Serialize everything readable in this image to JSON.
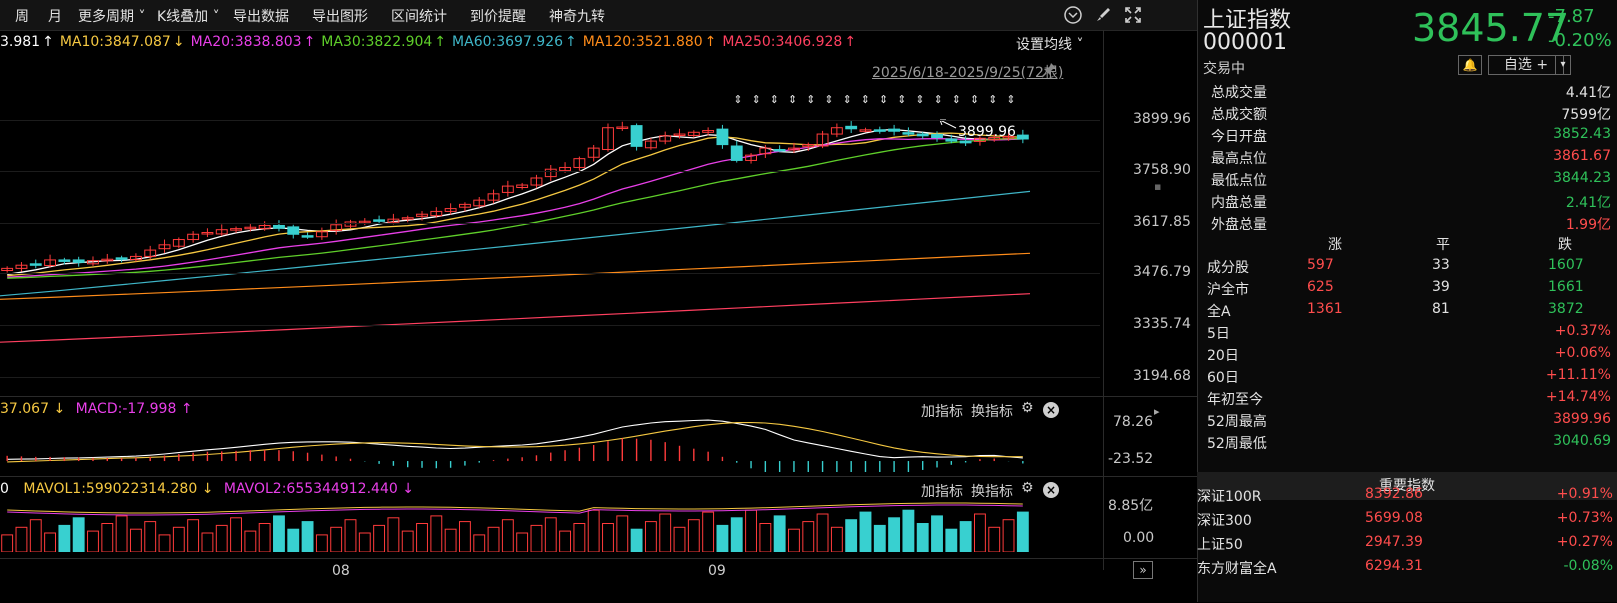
{
  "toolbar": {
    "items": [
      "周",
      "月",
      "更多周期",
      "K线叠加",
      "导出数据",
      "导出图形",
      "区间统计",
      "到价提醒",
      "神奇九转"
    ],
    "icons": [
      "chevron-circle-icon",
      "brush-icon",
      "fullscreen-icon"
    ]
  },
  "ma": [
    {
      "label": "3.981",
      "arrow": "↑",
      "color": "#ffffff"
    },
    {
      "label": "MA10:3847.087",
      "arrow": "↓",
      "color": "#f5c842"
    },
    {
      "label": "MA20:3838.803",
      "arrow": "↑",
      "color": "#e83fe8"
    },
    {
      "label": "MA30:3822.904",
      "arrow": "↑",
      "color": "#5fcf2a"
    },
    {
      "label": "MA60:3697.926",
      "arrow": "↑",
      "color": "#3fb6c8"
    },
    {
      "label": "MA120:3521.880",
      "arrow": "↑",
      "color": "#ff8c1a"
    },
    {
      "label": "MA250:3406.928",
      "arrow": "↑",
      "color": "#ff4060"
    }
  ],
  "settings_label": "设置均线",
  "range_label": "2025/6/18-2025/9/25(72根)",
  "high_marker": "3899.96",
  "y_axis": [
    "3899.96",
    "3758.90",
    "3617.85",
    "3476.79",
    "3335.74",
    "3194.68"
  ],
  "x_axis": [
    "08",
    "09"
  ],
  "macd": {
    "left": "37.067",
    "left_arrow": "↓",
    "macd": "MACD:-17.998",
    "macd_arrow": "↑",
    "ticks": [
      "78.26",
      "-23.52"
    ]
  },
  "vol": {
    "left": "0",
    "mavol1": "MAVOL1:599022314.280",
    "mavol1_arrow": "↓",
    "mavol2": "MAVOL2:655344912.440",
    "mavol2_arrow": "↓",
    "ticks": [
      "8.85亿",
      "0.00"
    ]
  },
  "panel_buttons": {
    "add": "加指标",
    "switch": "换指标"
  },
  "index": {
    "name": "上证指数",
    "code": "000001",
    "status": "交易中",
    "price": "3845.77",
    "change": "-7.87",
    "pct": "-0.20%",
    "watch_btn": "自选 +"
  },
  "stats": [
    {
      "k": "总成交量",
      "v": "4.41亿",
      "c": "w"
    },
    {
      "k": "总成交额",
      "v": "7599亿",
      "c": "w"
    },
    {
      "k": "今日开盘",
      "v": "3852.43",
      "c": "g"
    },
    {
      "k": "最高点位",
      "v": "3861.67",
      "c": "r"
    },
    {
      "k": "最低点位",
      "v": "3844.23",
      "c": "g"
    },
    {
      "k": "内盘总量",
      "v": "2.41亿",
      "c": "g"
    },
    {
      "k": "外盘总量",
      "v": "1.99亿",
      "c": "r"
    }
  ],
  "breadth_header": [
    "涨",
    "平",
    "跌"
  ],
  "breadth": [
    {
      "k": "成分股",
      "up": "597",
      "flat": "33",
      "down": "1607"
    },
    {
      "k": "沪全市",
      "up": "625",
      "flat": "39",
      "down": "1661"
    },
    {
      "k": "全A",
      "up": "1361",
      "flat": "81",
      "down": "3872"
    }
  ],
  "periods": [
    {
      "k": "5日",
      "v": "+0.37%",
      "c": "r"
    },
    {
      "k": "20日",
      "v": "+0.06%",
      "c": "r"
    },
    {
      "k": "60日",
      "v": "+11.11%",
      "c": "r"
    },
    {
      "k": "年初至今",
      "v": "+14.74%",
      "c": "r"
    },
    {
      "k": "52周最高",
      "v": "3899.96",
      "c": "r"
    },
    {
      "k": "52周最低",
      "v": "3040.69",
      "c": "g"
    }
  ],
  "important_title": "重要指数",
  "important": [
    {
      "name": "深证100R",
      "price": "8392.86",
      "pct": "+0.91%",
      "c": "r"
    },
    {
      "name": "深证300",
      "price": "5699.08",
      "pct": "+0.73%",
      "c": "r"
    },
    {
      "name": "上证50",
      "price": "2947.39",
      "pct": "+0.27%",
      "c": "r"
    },
    {
      "name": "东方财富全A",
      "price": "6294.31",
      "pct": "-0.08%",
      "c": "g"
    }
  ],
  "chart_data": {
    "type": "candlestick",
    "price_range": [
      3194.68,
      3899.96
    ],
    "closes": [
      3478,
      3487,
      3490,
      3502,
      3498,
      3495,
      3500,
      3504,
      3507,
      3512,
      3530,
      3545,
      3560,
      3575,
      3580,
      3588,
      3591,
      3595,
      3600,
      3592,
      3575,
      3568,
      3582,
      3602,
      3610,
      3612,
      3613,
      3618,
      3622,
      3632,
      3640,
      3648,
      3660,
      3672,
      3690,
      3712,
      3715,
      3735,
      3760,
      3765,
      3790,
      3820,
      3878,
      3880,
      3825,
      3840,
      3855,
      3860,
      3865,
      3870,
      3830,
      3785,
      3800,
      3820,
      3815,
      3820,
      3830,
      3860,
      3878,
      3875,
      3872,
      3870,
      3868,
      3860,
      3855,
      3850,
      3840,
      3835,
      3848,
      3850,
      3853,
      3846
    ]
  }
}
